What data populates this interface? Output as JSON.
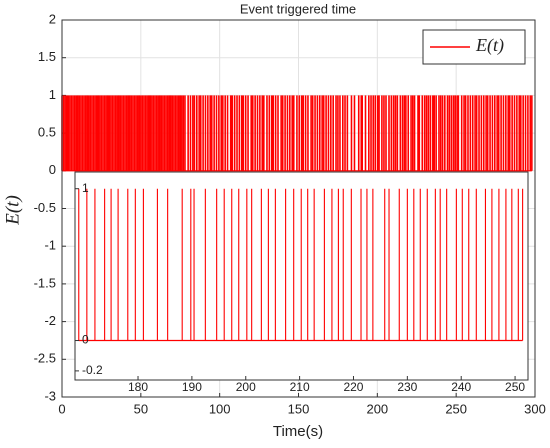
{
  "chart_data": {
    "type": "event",
    "title": "Event triggered time",
    "xlabel": "Time(s)",
    "ylabel": "E(t)",
    "xlim": [
      0,
      300
    ],
    "ylim": [
      -3,
      2
    ],
    "xticks": [
      0,
      50,
      100,
      150,
      200,
      250,
      300
    ],
    "yticks": [
      -3,
      -2.5,
      -2,
      -1.5,
      -1,
      -0.5,
      0,
      0.5,
      1,
      1.5,
      2
    ],
    "grid": true,
    "legend": "upper right",
    "series": [
      {
        "name": "E(t)",
        "color": "#ff0000",
        "event_height": 1,
        "x": [
          0,
          1,
          2,
          3,
          4,
          5,
          6,
          7,
          8,
          9,
          10,
          11,
          12,
          13,
          14,
          15,
          16,
          17,
          18,
          19,
          20,
          21,
          22,
          23,
          24,
          25,
          26,
          27,
          28,
          29,
          30,
          31,
          32,
          33,
          34,
          35,
          36,
          37,
          38,
          39,
          40,
          41,
          42,
          43,
          44,
          45,
          46,
          47,
          48,
          49,
          50,
          51,
          52,
          53,
          54,
          55,
          56,
          57,
          58,
          59,
          60,
          61,
          62,
          63,
          64,
          65,
          66,
          67,
          68,
          69,
          70,
          71,
          72,
          73,
          74,
          75,
          76,
          77,
          78,
          80,
          81.5,
          83,
          84,
          85.5,
          87,
          88,
          89.5,
          91,
          92.5,
          94,
          95,
          96.5,
          98,
          99.5,
          101,
          102,
          103.5,
          105,
          107,
          108,
          109.5,
          111,
          112.5,
          114,
          115,
          116.5,
          118,
          120,
          121,
          122.5,
          124,
          125.5,
          127,
          128,
          130,
          131.5,
          133,
          134,
          135.5,
          137,
          139,
          140,
          141.5,
          143,
          144.5,
          146,
          147,
          149,
          150.5,
          152,
          153,
          154.5,
          156,
          158,
          159,
          160.5,
          162,
          163.5,
          165,
          166,
          167.5,
          169,
          170.5,
          172,
          173.8,
          175,
          176.3,
          178.1,
          179.5,
          181,
          183.6,
          185.5,
          188.2,
          189.8,
          190.4,
          192.5,
          194.6,
          196,
          197.4,
          198.7,
          200.2,
          201.1,
          202.9,
          204.2,
          205.5,
          207.4,
          208.9,
          210.3,
          211.5,
          212.7,
          214.6,
          216,
          217.2,
          218.1,
          219.6,
          221.4,
          222.5,
          223.6,
          225.8,
          226.6,
          228.5,
          230,
          231.2,
          232.4,
          233.7,
          235.2,
          236.1,
          237.3,
          239.1,
          240.2,
          241.4,
          242.8,
          244.5,
          245.7,
          247,
          248.3,
          249.4,
          250.6,
          251.4,
          253.5,
          255,
          256,
          257.5,
          259,
          260.5,
          262,
          263,
          264.5,
          266,
          267.5,
          269,
          270,
          271.5,
          273,
          274.5,
          276,
          277,
          278.5,
          280,
          281.5,
          283,
          284,
          285.5,
          287,
          288.5,
          290,
          291,
          292.5,
          294,
          295.5,
          297,
          298
        ]
      }
    ],
    "inset": {
      "xlim": [
        168.3,
        252.4
      ],
      "ylim": [
        -0.26,
        1.11
      ],
      "xticks": [
        180,
        190,
        200,
        210,
        220,
        230,
        240,
        250
      ],
      "yticks": [
        -0.2,
        0,
        1
      ]
    }
  }
}
